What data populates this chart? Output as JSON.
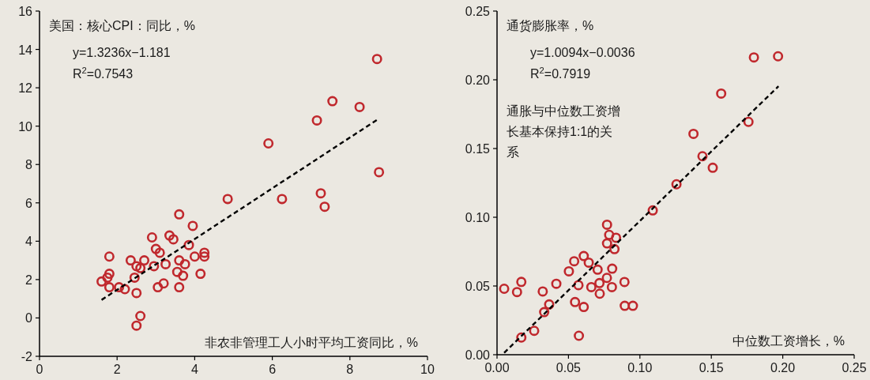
{
  "chart_data": [
    {
      "type": "scatter",
      "ylabel": "美国：核心CPI：同比，%",
      "xlabel": "非农非管理工人小时平均工资同比，%",
      "annotations": [
        "y=1.3236x−1.181",
        "R$^{2}$=0.7543"
      ],
      "xlim": [
        0,
        10
      ],
      "xticks": [
        0,
        2,
        4,
        6,
        8,
        10
      ],
      "ylim": [
        -2,
        16
      ],
      "yticks": [
        -2,
        0,
        2,
        4,
        6,
        8,
        10,
        12,
        14,
        16
      ],
      "grid": false,
      "marker": "circle",
      "series": [
        {
          "type": "scatter",
          "color": "#c0282d",
          "x": [
            1.6,
            1.75,
            1.8,
            1.8,
            1.8,
            2.05,
            2.2,
            2.35,
            2.45,
            2.5,
            2.5,
            2.5,
            2.6,
            2.6,
            2.7,
            2.9,
            2.95,
            3.0,
            3.05,
            3.1,
            3.2,
            3.25,
            3.35,
            3.45,
            3.6,
            3.6,
            3.6,
            3.55,
            3.7,
            3.75,
            3.85,
            3.95,
            4.0,
            4.15,
            4.25,
            4.25,
            4.85,
            5.9,
            6.25,
            7.15,
            7.25,
            7.35,
            7.55,
            8.25,
            8.7,
            8.75
          ],
          "values": [
            1.9,
            2.1,
            2.3,
            1.6,
            3.2,
            1.6,
            1.5,
            3.0,
            2.1,
            2.7,
            1.3,
            -0.4,
            0.1,
            2.6,
            3.0,
            4.2,
            2.7,
            3.6,
            1.6,
            3.4,
            1.8,
            2.8,
            4.3,
            4.1,
            5.4,
            3.0,
            1.6,
            2.4,
            2.2,
            2.8,
            3.8,
            4.8,
            3.2,
            2.3,
            3.2,
            3.4,
            6.2,
            9.1,
            6.2,
            10.3,
            6.5,
            5.8,
            11.3,
            11.0,
            13.5,
            7.6
          ]
        },
        {
          "type": "line",
          "color": "#000000",
          "line_style": "dashed",
          "marker": "none",
          "x": [
            1.6,
            8.7
          ],
          "values": [
            0.94,
            10.33
          ]
        }
      ]
    },
    {
      "type": "scatter",
      "ylabel": "通货膨胀率，%",
      "xlabel": "中位数工资增长，%",
      "annotations": [
        "y=1.0094x−0.0036",
        "R$^{2}$=0.7919",
        "通胀与中位数工资增长基本保持1:1的关系"
      ],
      "xlim": [
        0,
        0.25
      ],
      "xticks": [
        {
          "value": 0,
          "label": "0.00"
        },
        {
          "value": 0.05,
          "label": "0.05"
        },
        {
          "value": 0.1,
          "label": "0.10"
        },
        {
          "value": 0.15,
          "label": "0.15"
        },
        {
          "value": 0.2,
          "label": "0.20"
        },
        {
          "value": 0.25,
          "label": "0.25"
        }
      ],
      "ylim": [
        0,
        0.25
      ],
      "yticks": [
        {
          "value": 0,
          "label": "0.00"
        },
        {
          "value": 0.05,
          "label": "0.05"
        },
        {
          "value": 0.1,
          "label": "0.10"
        },
        {
          "value": 0.15,
          "label": "0.15"
        },
        {
          "value": 0.2,
          "label": "0.20"
        },
        {
          "value": 0.25,
          "label": "0.25"
        }
      ],
      "grid": false,
      "marker": "circle",
      "series": [
        {
          "type": "scatter",
          "color": "#c0282d",
          "x": [
            0.005,
            0.014,
            0.017,
            0.017,
            0.026,
            0.032,
            0.033,
            0.0365,
            0.0415,
            0.0503,
            0.054,
            0.057,
            0.0546,
            0.0607,
            0.0573,
            0.0607,
            0.0642,
            0.066,
            0.0704,
            0.0717,
            0.0719,
            0.0769,
            0.077,
            0.0785,
            0.077,
            0.0833,
            0.0822,
            0.0806,
            0.0804,
            0.0892,
            0.0894,
            0.0951,
            0.109,
            0.1256,
            0.1438,
            0.151,
            0.1375,
            0.1569,
            0.176,
            0.1798,
            0.1967
          ],
          "values": [
            0.048,
            0.0456,
            0.053,
            0.0125,
            0.0174,
            0.046,
            0.031,
            0.0366,
            0.0516,
            0.0607,
            0.068,
            0.0506,
            0.0383,
            0.0347,
            0.0138,
            0.0718,
            0.067,
            0.0492,
            0.0619,
            0.0521,
            0.0444,
            0.0559,
            0.0946,
            0.0872,
            0.081,
            0.0851,
            0.0768,
            0.0626,
            0.0492,
            0.0529,
            0.0356,
            0.0356,
            0.105,
            0.124,
            0.1444,
            0.136,
            0.1607,
            0.19,
            0.1694,
            0.2163,
            0.2171
          ]
        },
        {
          "type": "line",
          "color": "#000000",
          "line_style": "dashed",
          "marker": "none",
          "x": [
            0.005,
            0.197
          ],
          "values": [
            0.0014,
            0.1953
          ]
        }
      ]
    }
  ]
}
